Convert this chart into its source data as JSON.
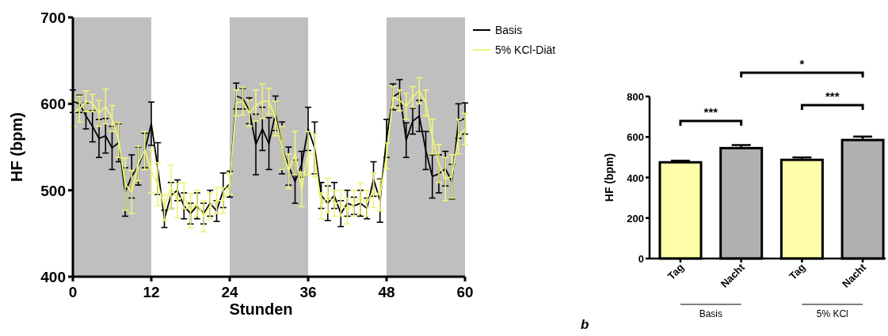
{
  "chart_data": [
    {
      "type": "line",
      "xlabel": "Stunden",
      "ylabel": "HF (bpm)",
      "x": [
        0,
        1,
        2,
        3,
        4,
        5,
        6,
        7,
        8,
        9,
        10,
        11,
        12,
        13,
        14,
        15,
        16,
        17,
        18,
        19,
        20,
        21,
        22,
        23,
        24,
        25,
        26,
        27,
        28,
        29,
        30,
        31,
        32,
        33,
        34,
        35,
        36,
        37,
        38,
        39,
        40,
        41,
        42,
        43,
        44,
        45,
        46,
        47,
        48,
        49,
        50,
        51,
        52,
        53,
        54,
        55,
        56,
        57,
        58,
        59,
        60
      ],
      "series": [
        {
          "name": "Basis",
          "color": "#000000",
          "values": [
            603,
            600,
            586,
            574,
            560,
            563,
            549,
            555,
            498,
            516,
            528,
            546,
            577,
            525,
            467,
            494,
            500,
            482,
            473,
            482,
            473,
            485,
            476,
            500,
            507,
            609,
            606,
            592,
            553,
            571,
            554,
            589,
            549,
            528,
            510,
            530,
            571,
            549,
            494,
            485,
            494,
            473,
            485,
            482,
            485,
            479,
            513,
            488,
            560,
            608,
            613,
            558,
            580,
            586,
            546,
            516,
            519,
            525,
            510,
            580,
            583
          ],
          "errors": [
            13,
            10,
            15,
            18,
            22,
            20,
            25,
            22,
            28,
            25,
            22,
            20,
            25,
            30,
            10,
            15,
            12,
            15,
            12,
            15,
            12,
            15,
            12,
            20,
            15,
            15,
            12,
            15,
            35,
            25,
            30,
            20,
            30,
            22,
            25,
            15,
            25,
            30,
            15,
            20,
            15,
            15,
            15,
            10,
            15,
            12,
            20,
            25,
            22,
            15,
            15,
            20,
            15,
            18,
            22,
            25,
            22,
            20,
            20,
            20,
            18
          ]
        },
        {
          "name": "5% KCl-Diät",
          "color": "#eef57a",
          "values": [
            589,
            594,
            603,
            601,
            589,
            597,
            583,
            558,
            507,
            498,
            531,
            546,
            522,
            507,
            480,
            504,
            488,
            494,
            476,
            485,
            470,
            482,
            488,
            488,
            507,
            601,
            603,
            589,
            598,
            603,
            603,
            583,
            549,
            522,
            543,
            501,
            543,
            540,
            482,
            494,
            485,
            485,
            476,
            485,
            491,
            485,
            500,
            494,
            540,
            608,
            604,
            597,
            608,
            615,
            601,
            562,
            531,
            513,
            516,
            562,
            571
          ],
          "errors": [
            15,
            15,
            12,
            10,
            15,
            20,
            15,
            20,
            30,
            25,
            20,
            22,
            25,
            25,
            15,
            25,
            20,
            15,
            20,
            15,
            18,
            15,
            15,
            15,
            12,
            15,
            16,
            15,
            18,
            20,
            15,
            20,
            25,
            20,
            25,
            20,
            25,
            25,
            15,
            20,
            15,
            15,
            15,
            15,
            18,
            15,
            20,
            18,
            15,
            12,
            12,
            15,
            12,
            15,
            15,
            20,
            22,
            25,
            25,
            20,
            18
          ]
        }
      ],
      "xlim": [
        0,
        60
      ],
      "xticks": [
        0,
        12,
        24,
        36,
        48,
        60
      ],
      "ylim": [
        400,
        700
      ],
      "yticks": [
        400,
        500,
        600,
        700
      ],
      "bands": [
        {
          "axis": "x",
          "from": 0,
          "to": 12,
          "color": "#c0bfbf"
        },
        {
          "axis": "x",
          "from": 24,
          "to": 36,
          "color": "#c0bfbf"
        },
        {
          "axis": "x",
          "from": 48,
          "to": 60,
          "color": "#c0bfbf"
        }
      ],
      "legend": "top right",
      "marker": "none"
    },
    {
      "type": "bar",
      "ylabel": "HF (bpm)",
      "categories": [
        "Tag",
        "Nacht",
        "Tag",
        "Nacht"
      ],
      "values": [
        475,
        545,
        487,
        585
      ],
      "errors": [
        8,
        15,
        12,
        17
      ],
      "colors": [
        "#ffffaa",
        "#b0b0b0",
        "#ffffaa",
        "#b0b0b0"
      ],
      "ylim": [
        0,
        800
      ],
      "yticks": [
        0,
        200,
        400,
        600,
        800
      ],
      "annotations": [
        "***",
        "***",
        "*",
        "Basis",
        "5% KCl",
        "b"
      ]
    }
  ]
}
